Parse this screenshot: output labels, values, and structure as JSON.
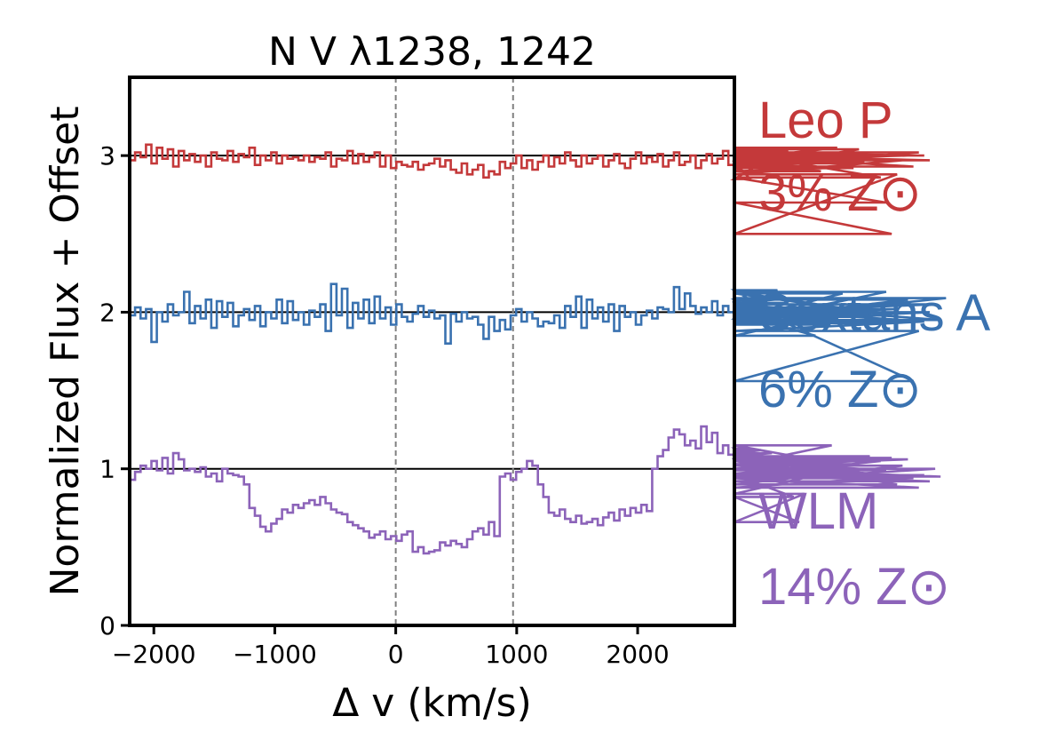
{
  "chart_data": {
    "type": "line",
    "title": "N V λ1238, 1242",
    "xlabel": "Δ v (km/s)",
    "ylabel": "Normalized Flux + Offset",
    "xlim": [
      -2200,
      2800
    ],
    "ylim": [
      0,
      3.5
    ],
    "xticks": [
      -2000,
      -1000,
      0,
      1000,
      2000
    ],
    "xtick_labels": [
      "−2000",
      "−1000",
      "0",
      "1000",
      "2000"
    ],
    "yticks": [
      0,
      1,
      2,
      3
    ],
    "ytick_labels": [
      "0",
      "1",
      "2",
      "3"
    ],
    "reference_lines_y": [
      1,
      2,
      3
    ],
    "vertical_markers_x": [
      0,
      970
    ],
    "step_width": 45,
    "x_start": -2200,
    "grid": false,
    "legend_position": "right-outside",
    "series": [
      {
        "name": "Leo P",
        "metallicity": "3% Z⊙",
        "color": "#c4393a",
        "offset": 2,
        "values": [
          0.97,
          1.02,
          0.99,
          1.07,
          0.95,
          1.05,
          0.98,
          1.04,
          0.93,
          1.03,
          0.97,
          1.01,
          0.96,
          1.0,
          0.93,
          1.02,
          0.98,
          0.97,
          1.03,
          0.96,
          1.01,
          0.99,
          1.05,
          0.94,
          1.0,
          0.97,
          1.02,
          0.95,
          1.0,
          0.98,
          0.99,
          0.97,
          1.0,
          0.96,
          0.99,
          0.98,
          1.02,
          0.93,
          0.98,
          0.97,
          1.03,
          0.95,
          1.01,
          0.96,
          0.99,
          1.02,
          0.93,
          1.0,
          0.92,
          0.96,
          0.94,
          0.93,
          0.96,
          0.91,
          0.94,
          0.95,
          0.98,
          0.93,
          0.97,
          0.91,
          0.89,
          0.95,
          0.88,
          0.91,
          0.94,
          0.86,
          0.9,
          0.88,
          0.96,
          0.92,
          0.95,
          1.0,
          0.92,
          0.97,
          0.91,
          0.96,
          1.0,
          0.93,
          0.99,
          0.95,
          1.02,
          0.97,
          0.93,
          1.0,
          0.95,
          0.98,
          1.0,
          0.93,
          0.97,
          1.01,
          0.95,
          0.92,
          0.98,
          1.02,
          0.95,
          0.99,
          0.96,
          1.01,
          0.93,
          0.97,
          1.02,
          0.94,
          0.96,
          1.0,
          0.92,
          0.97,
          1.01,
          0.95,
          0.98,
          1.03,
          0.94,
          1.0,
          0.98,
          0.96,
          0.85,
          0.93,
          0.99,
          0.97,
          0.9,
          1.0,
          0.95,
          1.03,
          0.93,
          0.98,
          1.02,
          0.96,
          1.0,
          0.9,
          0.92,
          0.98,
          1.05,
          0.97,
          0.95,
          0.92,
          1.04,
          0.96,
          1.01,
          1.02,
          0.86,
          0.7,
          0.5,
          0.88,
          0.97,
          1.0,
          0.93,
          1.02,
          1.0,
          0.97
        ]
      },
      {
        "name": "Sextans A",
        "metallicity": "6% Z⊙",
        "color": "#3a72b0",
        "offset": 1,
        "values": [
          0.98,
          1.03,
          0.96,
          1.02,
          0.81,
          1.0,
          0.94,
          1.05,
          0.98,
          1.0,
          1.13,
          0.93,
          1.04,
          0.96,
          1.08,
          0.9,
          1.07,
          0.97,
          1.06,
          0.91,
          0.98,
          1.02,
          0.95,
          1.04,
          0.91,
          1.0,
          0.96,
          1.08,
          0.93,
          1.07,
          0.95,
          1.0,
          0.92,
          1.01,
          0.97,
          1.05,
          0.88,
          1.18,
          0.98,
          1.15,
          0.9,
          1.06,
          0.96,
          1.08,
          0.93,
          1.1,
          0.96,
          1.03,
          0.92,
          1.05,
          0.97,
          0.94,
          0.99,
          1.04,
          0.97,
          1.01,
          0.96,
          0.98,
          0.8,
          0.99,
          0.94,
          1.0,
          0.96,
          0.97,
          0.92,
          0.83,
          0.97,
          0.88,
          0.95,
          0.89,
          0.98,
          1.02,
          0.94,
          1.0,
          0.96,
          0.91,
          0.94,
          0.93,
          0.98,
          0.9,
          1.04,
          0.97,
          1.1,
          0.9,
          1.08,
          0.96,
          1.03,
          0.94,
          1.05,
          0.88,
          1.04,
          0.97,
          1.0,
          0.92,
          0.98,
          1.01,
          0.96,
          1.03,
          1.02,
          1.0,
          1.16,
          1.02,
          1.12,
          1.04,
          0.99,
          1.03,
          1.0,
          1.07,
          0.98,
          1.04,
          1.0,
          0.97,
          1.06,
          0.99,
          1.03,
          0.96,
          1.08,
          0.95,
          1.0,
          1.14,
          0.95,
          1.06,
          1.09,
          0.97,
          1.03,
          0.99,
          0.85,
          0.97,
          0.92,
          1.05,
          0.95,
          1.12,
          1.02,
          1.0,
          0.94,
          1.03,
          0.97,
          1.0,
          0.93,
          1.13,
          0.98,
          1.02,
          0.95,
          1.08,
          0.56,
          0.88,
          0.94,
          1.0,
          1.05,
          0.95,
          1.09
        ]
      },
      {
        "name": "WLM",
        "metallicity": "14% Z⊙",
        "color": "#8c63b9",
        "offset": 0,
        "values": [
          0.93,
          0.98,
          1.02,
          1.0,
          1.05,
          0.99,
          1.07,
          0.97,
          1.1,
          1.06,
          0.99,
          1.0,
          0.98,
          1.01,
          0.95,
          0.97,
          0.92,
          1.0,
          0.97,
          0.96,
          0.95,
          0.9,
          0.75,
          0.7,
          0.63,
          0.6,
          0.65,
          0.68,
          0.74,
          0.72,
          0.77,
          0.75,
          0.78,
          0.8,
          0.77,
          0.82,
          0.78,
          0.74,
          0.72,
          0.71,
          0.66,
          0.64,
          0.62,
          0.6,
          0.56,
          0.58,
          0.6,
          0.55,
          0.57,
          0.54,
          0.58,
          0.6,
          0.47,
          0.5,
          0.46,
          0.47,
          0.48,
          0.53,
          0.51,
          0.54,
          0.52,
          0.5,
          0.55,
          0.6,
          0.62,
          0.58,
          0.66,
          0.57,
          0.95,
          0.97,
          0.93,
          0.98,
          1.0,
          1.05,
          1.02,
          0.9,
          0.82,
          0.72,
          0.7,
          0.74,
          0.68,
          0.66,
          0.7,
          0.65,
          0.66,
          0.68,
          0.64,
          0.69,
          0.72,
          0.67,
          0.74,
          0.7,
          0.75,
          0.72,
          0.77,
          0.73,
          1.0,
          1.08,
          1.12,
          1.2,
          1.25,
          1.22,
          1.15,
          1.18,
          1.13,
          1.27,
          1.17,
          1.23,
          1.1,
          1.15,
          1.09,
          1.12,
          1.07,
          1.13,
          1.06,
          1.1,
          1.12,
          1.08,
          1.1,
          1.05,
          1.0,
          0.96,
          0.82,
          0.66,
          0.84,
          0.95,
          1.0,
          1.06,
          1.02,
          1.15,
          1.03,
          0.99,
          1.05,
          0.97,
          1.03,
          0.96,
          1.08,
          0.95,
          1.05,
          0.99,
          1.07,
          0.9,
          1.02,
          1.06,
          0.94,
          0.88,
          0.96,
          0.92,
          1.0,
          0.95
        ]
      }
    ]
  }
}
